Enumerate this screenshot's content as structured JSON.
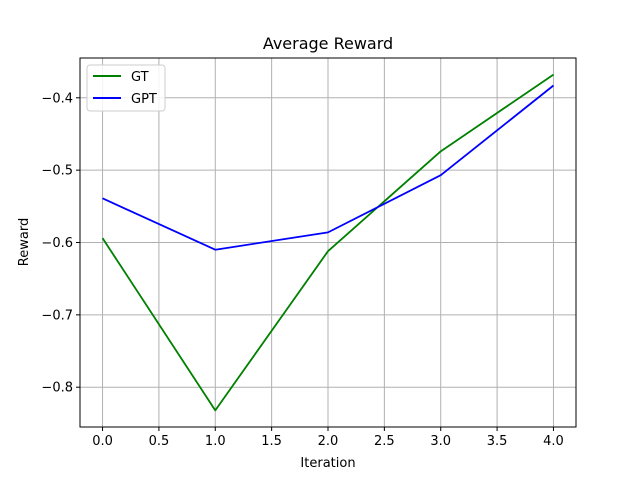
{
  "chart_data": {
    "type": "line",
    "title": "Average Reward",
    "xlabel": "Iteration",
    "ylabel": "Reward",
    "x": [
      0,
      1,
      2,
      3,
      4
    ],
    "xlim": [
      -0.2,
      4.2
    ],
    "ylim": [
      -0.855,
      -0.345
    ],
    "xticks": [
      0.0,
      0.5,
      1.0,
      1.5,
      2.0,
      2.5,
      3.0,
      3.5,
      4.0
    ],
    "yticks": [
      -0.8,
      -0.7,
      -0.6,
      -0.5,
      -0.4
    ],
    "xtick_labels": [
      "0.0",
      "0.5",
      "1.0",
      "1.5",
      "2.0",
      "2.5",
      "3.0",
      "3.5",
      "4.0"
    ],
    "ytick_labels": [
      "−0.8",
      "−0.7",
      "−0.6",
      "−0.5",
      "−0.4"
    ],
    "grid": true,
    "legend_position": "top-left",
    "series": [
      {
        "name": "GT",
        "color": "#008000",
        "values": [
          -0.594,
          -0.832,
          -0.612,
          -0.474,
          -0.368
        ]
      },
      {
        "name": "GPT",
        "color": "#0000ff",
        "values": [
          -0.539,
          -0.61,
          -0.586,
          -0.507,
          -0.383
        ]
      }
    ]
  }
}
